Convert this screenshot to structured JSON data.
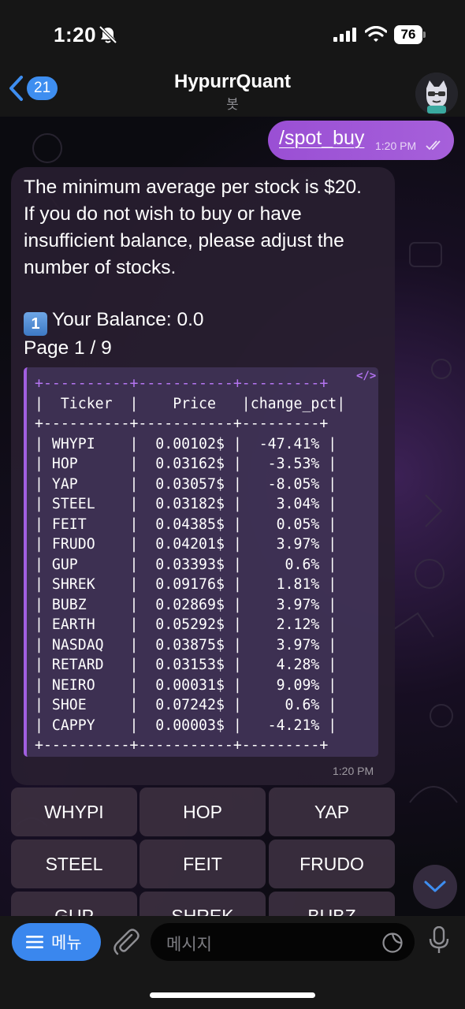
{
  "status_bar": {
    "time": "1:20",
    "battery": "76"
  },
  "header": {
    "back_badge": "21",
    "title": "HypurrQuant",
    "subtitle": "봇"
  },
  "outgoing": {
    "text": "/spot_buy",
    "time": "1:20 PM"
  },
  "incoming": {
    "lines": [
      "The minimum average per stock is $20.",
      "If you do not wish to buy or have",
      "insufficient balance, please adjust the",
      "number of stocks."
    ],
    "balance_key": "1",
    "balance_text": "Your Balance: 0.0",
    "page_text": "Page 1 / 9",
    "code_icon": "</>",
    "table_border_top": "+----------+-----------+---------+",
    "table_border": "+----------+-----------+---------+",
    "table_header": "|  Ticker  |    Price   |change_pct|",
    "table_rows": [
      "| WHYPI    |  0.00102$ |  -47.41% |",
      "| HOP      |  0.03162$ |   -3.53% |",
      "| YAP      |  0.03057$ |   -8.05% |",
      "| STEEL    |  0.03182$ |    3.04% |",
      "| FEIT     |  0.04385$ |    0.05% |",
      "| FRUDO    |  0.04201$ |    3.97% |",
      "| GUP      |  0.03393$ |     0.6% |",
      "| SHREK    |  0.09176$ |    1.81% |",
      "| BUBZ     |  0.02869$ |    3.97% |",
      "| EARTH    |  0.05292$ |    2.12% |",
      "| NASDAQ   |  0.03875$ |    3.97% |",
      "| RETARD   |  0.03153$ |    4.28% |",
      "| NEIRO    |  0.00031$ |    9.09% |",
      "| SHOE     |  0.07242$ |     0.6% |",
      "| CAPPY    |  0.00003$ |   -4.21% |"
    ],
    "time": "1:20 PM"
  },
  "keyboard": {
    "buttons": [
      "WHYPI",
      "HOP",
      "YAP",
      "STEEL",
      "FEIT",
      "FRUDO",
      "GUP",
      "SHREK",
      "BUBZ"
    ]
  },
  "input_bar": {
    "menu_label": "메뉴",
    "placeholder": "메시지"
  },
  "colors": {
    "accent_purple": "#a15fe0",
    "link_blue": "#3e8ef0"
  }
}
